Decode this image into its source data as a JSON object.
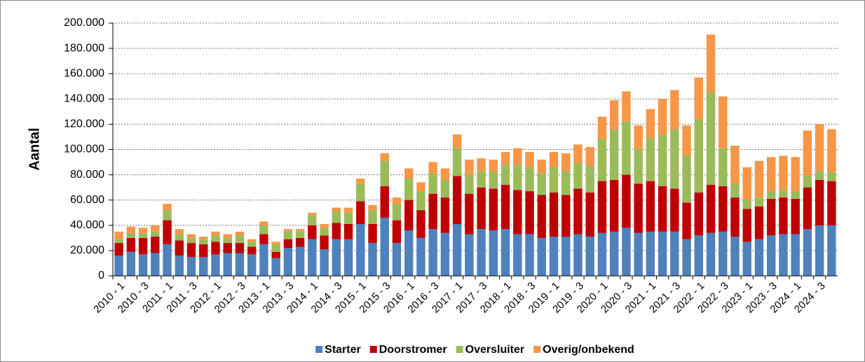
{
  "chart_data": {
    "type": "stacked_bar",
    "y_label": "Aantal",
    "categories": [
      "2010 - 1",
      null,
      "2010 - 3",
      null,
      "2011 - 1",
      null,
      "2011 - 3",
      null,
      "2012 - 1",
      null,
      "2012 - 3",
      null,
      "2013 - 1",
      null,
      "2013 - 3",
      null,
      "2014 - 1",
      null,
      "2014 - 3",
      null,
      "2015 - 1",
      null,
      "2015 - 3",
      null,
      "2016 - 1",
      null,
      "2016 - 3",
      null,
      "2017 - 1",
      null,
      "2017 - 3",
      null,
      "2018 - 1",
      null,
      "2018 - 3",
      null,
      "2019 - 1",
      null,
      "2019 - 3",
      null,
      "2020 - 1",
      null,
      "2020 - 3",
      null,
      "2021 - 1",
      null,
      "2021 - 3",
      null,
      "2022 - 1",
      null,
      "2022 - 3",
      null,
      "2023 - 1",
      null,
      "2023 - 3",
      null,
      "2024 - 1",
      null,
      "2024 - 3",
      null
    ],
    "series": [
      {
        "name": "Starter",
        "color": "#4f81bd",
        "values": [
          16000,
          19000,
          17000,
          18000,
          25000,
          16000,
          15000,
          15000,
          17000,
          18000,
          18000,
          17000,
          25000,
          14000,
          22000,
          23000,
          29000,
          21000,
          29000,
          29000,
          41000,
          26000,
          46000,
          26000,
          36000,
          30000,
          37000,
          34000,
          41000,
          33000,
          37000,
          36000,
          37000,
          33000,
          33000,
          30000,
          31000,
          31000,
          33000,
          31000,
          34000,
          35000,
          38000,
          34000,
          35000,
          35000,
          35000,
          29000,
          32000,
          34000,
          35000,
          31000,
          27000,
          29000,
          32000,
          33000,
          33000,
          37000,
          40000,
          40000
        ]
      },
      {
        "name": "Doorstromer",
        "color": "#c00000",
        "values": [
          10000,
          11000,
          13000,
          13000,
          19000,
          12000,
          11000,
          10000,
          10000,
          8000,
          8000,
          6000,
          8000,
          5000,
          7000,
          7000,
          11000,
          11000,
          13000,
          12000,
          18000,
          15000,
          25000,
          18000,
          24000,
          22000,
          28000,
          28000,
          38000,
          32000,
          33000,
          33000,
          35000,
          35000,
          34000,
          34000,
          35000,
          33000,
          36000,
          35000,
          41000,
          41000,
          42000,
          39000,
          40000,
          36000,
          34000,
          29000,
          34000,
          38000,
          36000,
          31000,
          26000,
          26000,
          29000,
          29000,
          28000,
          33000,
          36000,
          35000
        ]
      },
      {
        "name": "Oversluiter",
        "color": "#9bbb59",
        "values": [
          3000,
          4000,
          4000,
          4000,
          8000,
          5000,
          4000,
          4000,
          5000,
          4000,
          6000,
          4000,
          7000,
          6000,
          6000,
          5000,
          8000,
          6000,
          9000,
          9000,
          14000,
          11000,
          20000,
          13000,
          17000,
          15000,
          16000,
          14000,
          22000,
          15000,
          13000,
          13000,
          16000,
          20000,
          19000,
          17000,
          20000,
          19000,
          20000,
          21000,
          33000,
          40000,
          42000,
          27000,
          34000,
          41000,
          47000,
          37000,
          58000,
          73000,
          30000,
          11000,
          7000,
          7000,
          6000,
          6000,
          6000,
          9000,
          7000,
          7000
        ]
      },
      {
        "name": "Overig/onbekend",
        "color": "#f79646",
        "values": [
          6000,
          5000,
          4000,
          5000,
          5000,
          4000,
          3000,
          2000,
          3000,
          3000,
          3000,
          2000,
          3000,
          2000,
          2000,
          2000,
          2000,
          3000,
          3000,
          4000,
          4000,
          4000,
          6000,
          5000,
          8000,
          7000,
          9000,
          9000,
          11000,
          12000,
          10000,
          10000,
          10000,
          13000,
          12000,
          11000,
          12000,
          14000,
          15000,
          15000,
          18000,
          23000,
          24000,
          19000,
          23000,
          28000,
          31000,
          24000,
          33000,
          46000,
          41000,
          30000,
          26000,
          29000,
          27000,
          27000,
          27000,
          36000,
          37000,
          34000
        ]
      }
    ],
    "ylim": [
      0,
      200000
    ],
    "yticks": [
      0,
      {
        "value": 20000,
        "label": "20.000"
      },
      {
        "value": 40000,
        "label": "40.000"
      },
      {
        "value": 60000,
        "label": "60.000"
      },
      {
        "value": 80000,
        "label": "80.000"
      },
      {
        "value": 100000,
        "label": "100.000"
      },
      {
        "value": 120000,
        "label": "120.000"
      },
      {
        "value": 140000,
        "label": "140.000"
      },
      {
        "value": 160000,
        "label": "160.000"
      },
      {
        "value": 180000,
        "label": "180.000"
      },
      {
        "value": 200000,
        "label": "200.000"
      }
    ],
    "grid": true,
    "legend": "bottom"
  }
}
